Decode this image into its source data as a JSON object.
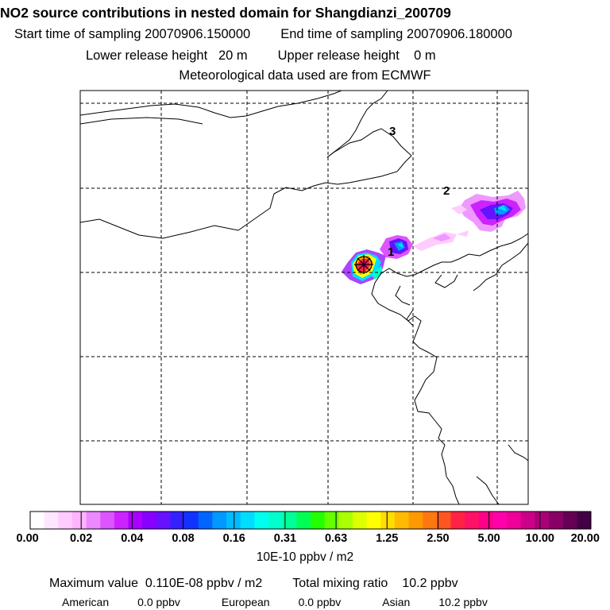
{
  "header": {
    "title": "NO2 source contributions in nested domain for Shangdianzi_200709",
    "start_label": "Start time of sampling",
    "start_value": "20070906.150000",
    "end_label": "End time of sampling",
    "end_value": "20070906.180000",
    "lower_label": "Lower release height",
    "lower_value": "20 m",
    "upper_label": "Upper release height",
    "upper_value": "0 m",
    "meteo": "Meteorological data used are from ECMWF"
  },
  "map": {
    "region_labels": [
      "1",
      "2",
      "3"
    ],
    "receptor_marker": "cross-circle"
  },
  "colorbar": {
    "ticks": [
      "0.00",
      "0.02",
      "0.04",
      "0.08",
      "0.16",
      "0.31",
      "0.63",
      "1.25",
      "2.50",
      "5.00",
      "10.00",
      "20.00"
    ],
    "units": "10E-10 ppbv / m2",
    "colors": [
      "#ffffff",
      "#ffe6ff",
      "#ffccff",
      "#ffb3ff",
      "#ee88ff",
      "#dd55ff",
      "#cc22ff",
      "#aa00ff",
      "#8800ff",
      "#6611ff",
      "#3322ff",
      "#1133ff",
      "#0066ff",
      "#0099ff",
      "#00bbff",
      "#00ddff",
      "#00ffee",
      "#00ffcc",
      "#00ff99",
      "#00ff55",
      "#22ff00",
      "#66ff00",
      "#aaff00",
      "#ddff00",
      "#ffff00",
      "#ffdd00",
      "#ffbb00",
      "#ff9900",
      "#ff7711",
      "#ff5522",
      "#ff2244",
      "#ff1166",
      "#ff0088",
      "#ff00aa",
      "#ee0099",
      "#cc0088",
      "#aa0077",
      "#880066",
      "#660055",
      "#440044"
    ]
  },
  "stats": {
    "max_label": "Maximum value",
    "max_value": "0.110E-08 ppbv / m2",
    "total_label": "Total mixing ratio",
    "total_value": "10.2 ppbv",
    "american_label": "American",
    "american_value": "0.0 ppbv",
    "european_label": "European",
    "european_value": "0.0 ppbv",
    "asian_label": "Asian",
    "asian_value": "10.2 ppbv"
  }
}
